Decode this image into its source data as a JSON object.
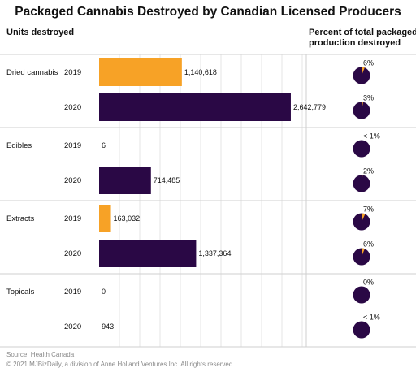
{
  "title": "Packaged Cannabis Destroyed by Canadian Licensed Producers",
  "left_header": "Units destroyed",
  "right_header_line1": "Percent of total packaged",
  "right_header_line2": "production destroyed",
  "source": "Source: Health Canada",
  "copyright": "© 2021 MJBizDaily, a division of Anne Holland Ventures Inc. All rights reserved.",
  "colors": {
    "2019": "#F7A226",
    "2020": "#2A0845",
    "separator": "#cfcfcf",
    "grid": "#e6e6e6"
  },
  "chart_data": {
    "type": "bar",
    "orientation": "horizontal",
    "categories": [
      "Dried cannabis",
      "Edibles",
      "Extracts",
      "Topicals"
    ],
    "years": [
      "2019",
      "2020"
    ],
    "xlim": [
      0,
      2800000
    ],
    "grid": true,
    "units_destroyed": {
      "2019": [
        1140618,
        6,
        163032,
        0
      ],
      "2020": [
        2642779,
        714485,
        1337364,
        943
      ]
    },
    "value_labels": {
      "2019": [
        "1,140,618",
        "6",
        "163,032",
        "0"
      ],
      "2020": [
        "2,642,779",
        "714,485",
        "1,337,364",
        "943"
      ]
    },
    "percent_destroyed": {
      "2019": [
        6,
        0.5,
        7,
        0
      ],
      "2020": [
        3,
        2,
        6,
        0.5
      ]
    },
    "percent_labels": {
      "2019": [
        "6%",
        "< 1%",
        "7%",
        "0%"
      ],
      "2020": [
        "3%",
        "2%",
        "6%",
        "< 1%"
      ]
    }
  }
}
